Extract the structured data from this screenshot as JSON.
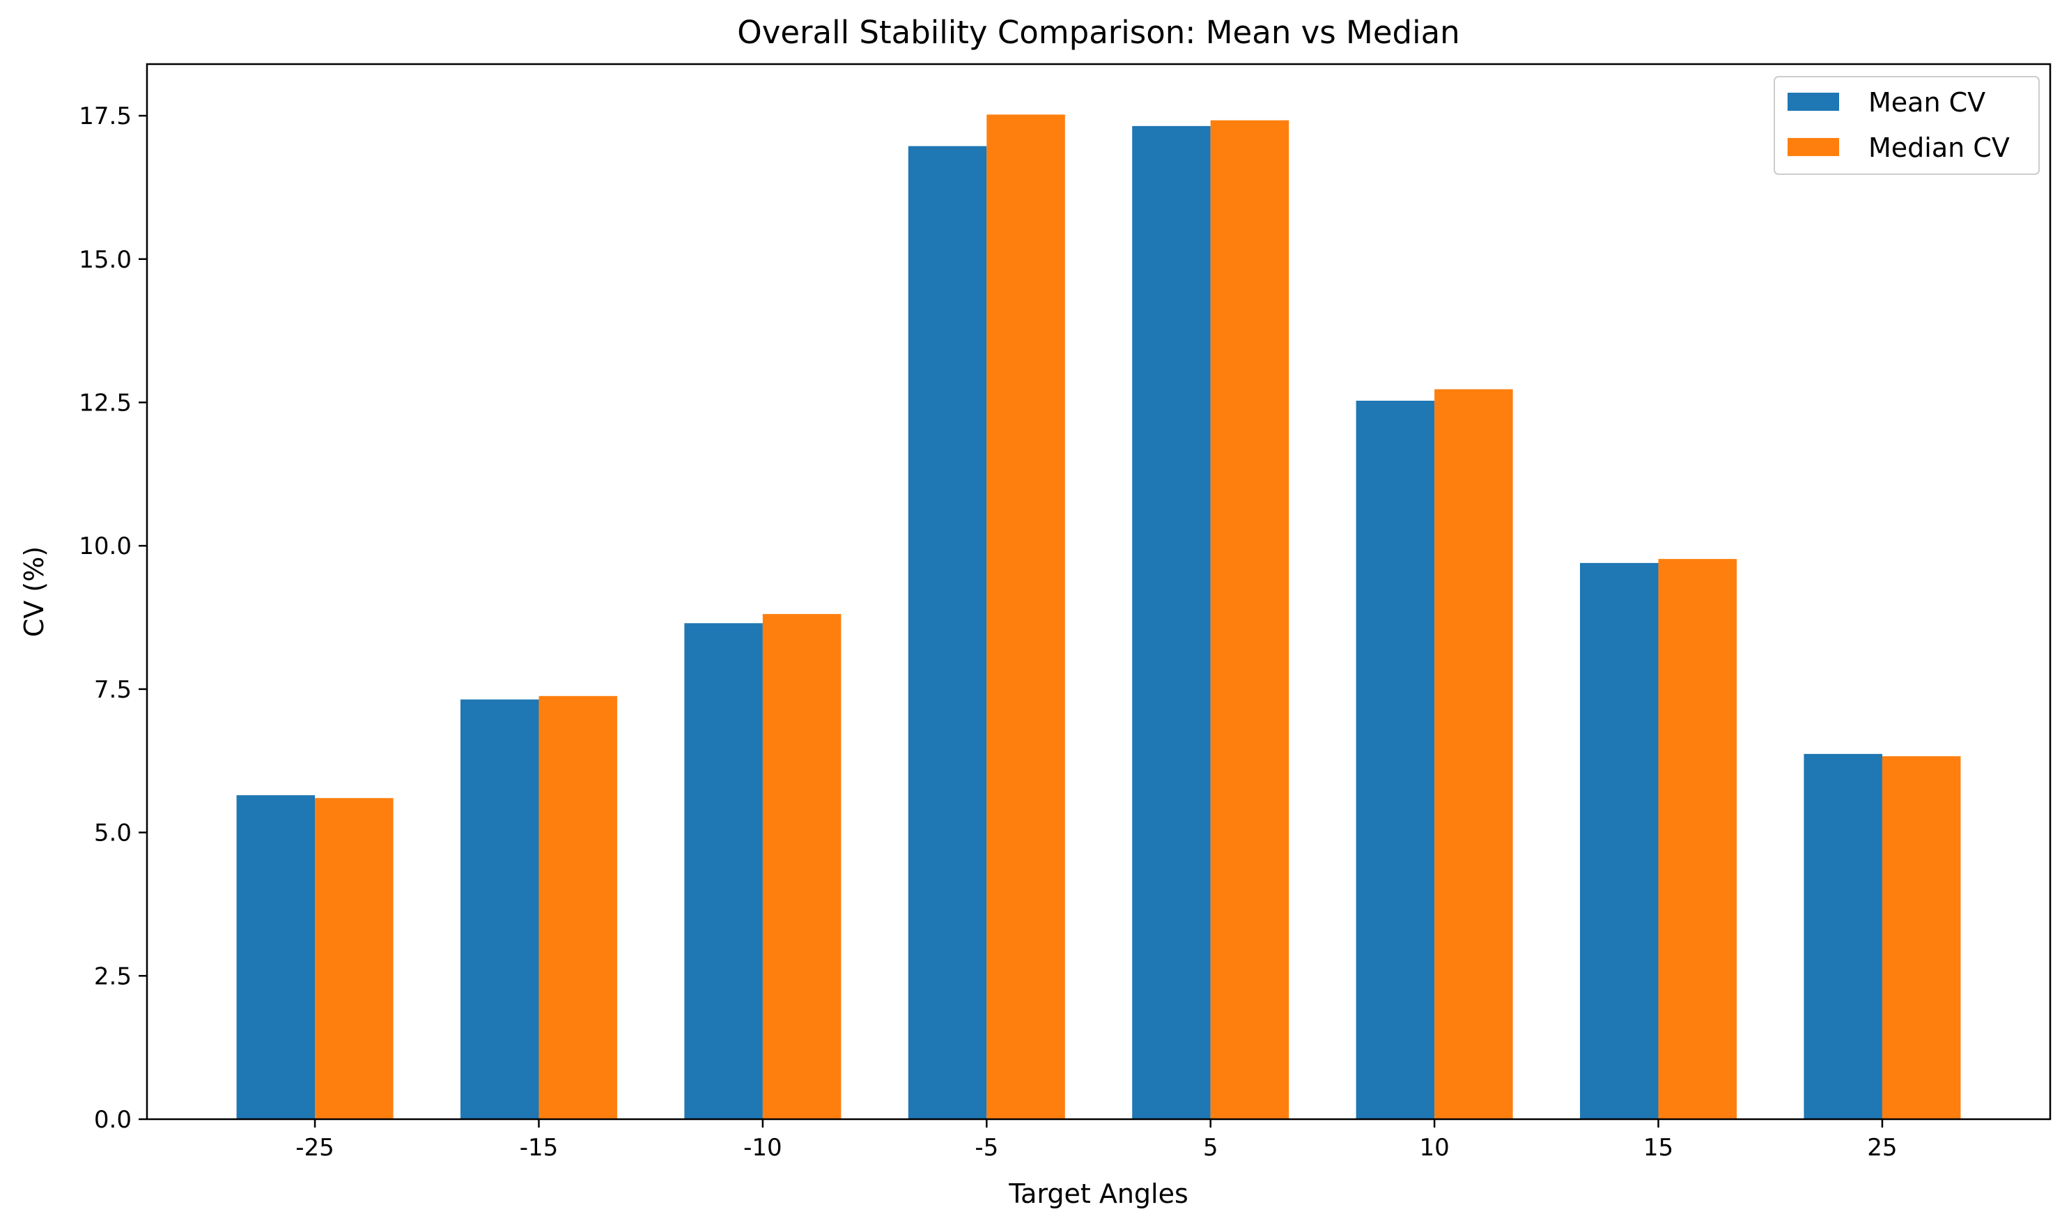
{
  "chart_data": {
    "type": "bar",
    "title": "Overall Stability Comparison: Mean vs Median",
    "xlabel": "Target Angles",
    "ylabel": "CV (%)",
    "categories": [
      "-25",
      "-15",
      "-10",
      "-5",
      "5",
      "10",
      "15",
      "25"
    ],
    "series": [
      {
        "name": "Mean CV",
        "color": "#1f77b4",
        "values": [
          5.65,
          7.32,
          8.65,
          16.97,
          17.32,
          12.53,
          9.7,
          6.37
        ]
      },
      {
        "name": "Median CV",
        "color": "#ff7f0e",
        "values": [
          5.6,
          7.38,
          8.81,
          17.52,
          17.42,
          12.73,
          9.77,
          6.33
        ]
      }
    ],
    "ylim": [
      0,
      18.4
    ],
    "yticks": [
      0.0,
      2.5,
      5.0,
      7.5,
      10.0,
      12.5,
      15.0,
      17.5
    ],
    "ytick_labels": [
      "0.0",
      "2.5",
      "5.0",
      "7.5",
      "10.0",
      "12.5",
      "15.0",
      "17.5"
    ],
    "grid": false,
    "legend_position": "top-right"
  }
}
